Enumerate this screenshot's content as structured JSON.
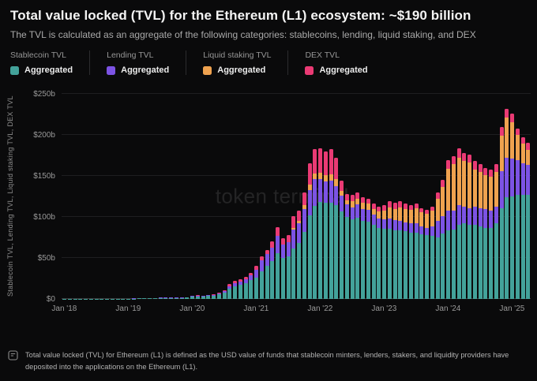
{
  "header": {
    "title": "Total value locked (TVL) for the Ethereum (L1) ecosystem: ~$190 billion",
    "subtitle": "The TVL is calculated as an aggregate of the following categories: stablecoins, lending, liquid staking, and DEX"
  },
  "legend": {
    "groups": [
      {
        "category": "Stablecoin TVL",
        "series_label": "Aggregated",
        "color": "#43a29a"
      },
      {
        "category": "Lending TVL",
        "series_label": "Aggregated",
        "color": "#7c53e4"
      },
      {
        "category": "Liquid staking TVL",
        "series_label": "Aggregated",
        "color": "#efa24f"
      },
      {
        "category": "DEX TVL",
        "series_label": "Aggregated",
        "color": "#ea3a74"
      }
    ]
  },
  "watermark": "token terminal",
  "footer": {
    "note": "Total value locked (TVL) for Ethereum (L1) is defined as the USD value of funds that stablecoin minters, lenders, stakers, and liquidity providers have deposited into the applications on the Ethereum (L1)."
  },
  "colors": {
    "background": "#0a0a0b",
    "gridline": "#1e1e20",
    "baseline": "#3c3c3e",
    "tick_text": "#9a9a9a",
    "stablecoin": "#43a29a",
    "lending": "#7c53e4",
    "liquid_staking": "#efa24f",
    "dex": "#ea3a74"
  },
  "chart_data": {
    "type": "bar",
    "stacked": true,
    "title": "Total value locked (TVL) for the Ethereum (L1) ecosystem: ~$190 billion",
    "xlabel": "",
    "ylabel": "Stablecoin TVL, Lending TVL, Liquid staking TVL, DEX TVL",
    "ylim": [
      0,
      250
    ],
    "y_unit": "USD billions",
    "grid": "horizontal",
    "legend_position": "top",
    "months": [
      "2018-01",
      "2018-02",
      "2018-03",
      "2018-04",
      "2018-05",
      "2018-06",
      "2018-07",
      "2018-08",
      "2018-09",
      "2018-10",
      "2018-11",
      "2018-12",
      "2019-01",
      "2019-02",
      "2019-03",
      "2019-04",
      "2019-05",
      "2019-06",
      "2019-07",
      "2019-08",
      "2019-09",
      "2019-10",
      "2019-11",
      "2019-12",
      "2020-01",
      "2020-02",
      "2020-03",
      "2020-04",
      "2020-05",
      "2020-06",
      "2020-07",
      "2020-08",
      "2020-09",
      "2020-10",
      "2020-11",
      "2020-12",
      "2021-01",
      "2021-02",
      "2021-03",
      "2021-04",
      "2021-05",
      "2021-06",
      "2021-07",
      "2021-08",
      "2021-09",
      "2021-10",
      "2021-11",
      "2021-12",
      "2022-01",
      "2022-02",
      "2022-03",
      "2022-04",
      "2022-05",
      "2022-06",
      "2022-07",
      "2022-08",
      "2022-09",
      "2022-10",
      "2022-11",
      "2022-12",
      "2023-01",
      "2023-02",
      "2023-03",
      "2023-04",
      "2023-05",
      "2023-06",
      "2023-07",
      "2023-08",
      "2023-09",
      "2023-10",
      "2023-11",
      "2023-12",
      "2024-01",
      "2024-02",
      "2024-03",
      "2024-04",
      "2024-05",
      "2024-06",
      "2024-07",
      "2024-08",
      "2024-09",
      "2024-10",
      "2024-11",
      "2024-12",
      "2025-01",
      "2025-02",
      "2025-03",
      "2025-04"
    ],
    "series": [
      {
        "name": "Stablecoin TVL (Aggregated)",
        "color": "#43a29a",
        "values": [
          0.1,
          0.1,
          0.1,
          0.1,
          0.2,
          0.2,
          0.2,
          0.2,
          0.2,
          0.2,
          0.3,
          0.3,
          0.3,
          0.4,
          0.5,
          0.7,
          0.8,
          0.9,
          1.0,
          1.0,
          1.1,
          1.2,
          1.3,
          1.5,
          2.8,
          3.1,
          3.0,
          3.6,
          4.3,
          5.5,
          8.0,
          12.5,
          15.5,
          17.5,
          19.5,
          23,
          26,
          34,
          40,
          46,
          56,
          50,
          52,
          62,
          68,
          82,
          102,
          113,
          118,
          117,
          117,
          114,
          107,
          100,
          97,
          99,
          95,
          94,
          90,
          87,
          86,
          86,
          84,
          84,
          83,
          81,
          81,
          79,
          78,
          77,
          75,
          80,
          84,
          85,
          90,
          92,
          90,
          90,
          88,
          87,
          87,
          92,
          111,
          124,
          125,
          127,
          127,
          127
        ]
      },
      {
        "name": "Lending TVL (Aggregated)",
        "color": "#7c53e4",
        "values": [
          0.1,
          0.1,
          0.1,
          0.1,
          0.1,
          0.1,
          0.1,
          0.1,
          0.1,
          0.1,
          0.1,
          0.1,
          0.2,
          0.2,
          0.3,
          0.3,
          0.4,
          0.4,
          0.5,
          0.5,
          0.5,
          0.6,
          0.6,
          0.7,
          0.9,
          1.1,
          0.6,
          0.8,
          1.0,
          1.5,
          2.0,
          3.0,
          3.5,
          3.8,
          4.5,
          5.5,
          10,
          13,
          14.5,
          17,
          21,
          16,
          17.5,
          23,
          24,
          28,
          31,
          33,
          28,
          26,
          27,
          24,
          19,
          15,
          15,
          16,
          15,
          15,
          13,
          11,
          11,
          12,
          12,
          11,
          10,
          11,
          11,
          9,
          9,
          11,
          20,
          21,
          24,
          23,
          24,
          21,
          21,
          23,
          23,
          23,
          21,
          21,
          45,
          48,
          46,
          42,
          38,
          36
        ]
      },
      {
        "name": "Liquid staking TVL (Aggregated)",
        "color": "#efa24f",
        "values": [
          0,
          0,
          0,
          0,
          0,
          0,
          0,
          0,
          0,
          0,
          0,
          0,
          0,
          0,
          0,
          0,
          0,
          0,
          0,
          0,
          0,
          0,
          0,
          0,
          0,
          0,
          0,
          0,
          0,
          0,
          0,
          0,
          0,
          0,
          0,
          0,
          0,
          0,
          0,
          0,
          0,
          0,
          0,
          2,
          3,
          4,
          6,
          7,
          8,
          8,
          8,
          8,
          6,
          5,
          7,
          7,
          7,
          7,
          7,
          9,
          11,
          14,
          14,
          17,
          17,
          17,
          19,
          18,
          17,
          20,
          27,
          36,
          51,
          56,
          58,
          55,
          55,
          45,
          44,
          41,
          41,
          42,
          43,
          49,
          44,
          31,
          24,
          19
        ]
      },
      {
        "name": "DEX TVL (Aggregated)",
        "color": "#ea3a74",
        "values": [
          0,
          0,
          0,
          0,
          0,
          0,
          0,
          0,
          0,
          0,
          0,
          0,
          0,
          0,
          0,
          0.1,
          0.1,
          0.1,
          0.1,
          0.1,
          0.2,
          0.2,
          0.2,
          0.2,
          0.2,
          0.3,
          0.2,
          0.3,
          0.4,
          0.6,
          1.0,
          2.5,
          3.0,
          2.7,
          3.0,
          3.5,
          4,
          5,
          5.5,
          7,
          11,
          8,
          8.5,
          14,
          13,
          16,
          26,
          30,
          30,
          29,
          31,
          26,
          12,
          8,
          8,
          8,
          7,
          6,
          6,
          6,
          6,
          7,
          7,
          7,
          6,
          5,
          5,
          5,
          5,
          5,
          8,
          8,
          10,
          10,
          12,
          10,
          10,
          10,
          9,
          9,
          9,
          9,
          11,
          11,
          11,
          8,
          8,
          8
        ]
      }
    ],
    "yticks": [
      {
        "value": 0,
        "label": "$0"
      },
      {
        "value": 50,
        "label": "$50b"
      },
      {
        "value": 100,
        "label": "$100b"
      },
      {
        "value": 150,
        "label": "$150b"
      },
      {
        "value": 200,
        "label": "$200b"
      },
      {
        "value": 250,
        "label": "$250b"
      }
    ],
    "xticks": [
      {
        "index": 0,
        "label": "Jan '18"
      },
      {
        "index": 12,
        "label": "Jan '19"
      },
      {
        "index": 24,
        "label": "Jan '20"
      },
      {
        "index": 36,
        "label": "Jan '21"
      },
      {
        "index": 48,
        "label": "Jan '22"
      },
      {
        "index": 60,
        "label": "Jan '23"
      },
      {
        "index": 72,
        "label": "Jan '24"
      },
      {
        "index": 84,
        "label": "Jan '25"
      }
    ]
  }
}
